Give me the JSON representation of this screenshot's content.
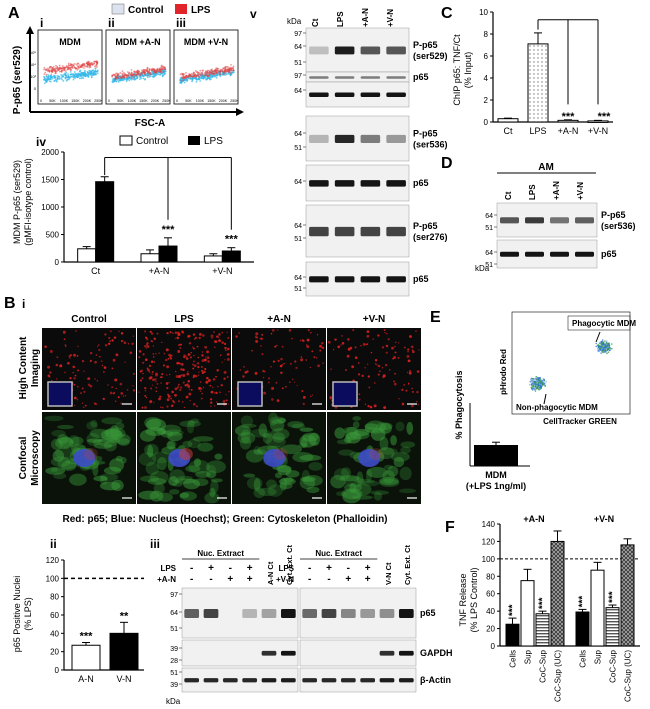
{
  "panelA": {
    "letter": "A",
    "legend": {
      "control": "Control",
      "lps": "LPS",
      "control_color": "#dde3ee",
      "lps_color": "#e0242a"
    },
    "flow": {
      "y_label": "P-p65 (ser529)",
      "x_label": "FSC-A",
      "subpanels": [
        {
          "num": "i",
          "label": "MDM"
        },
        {
          "num": "ii",
          "label": "MDM +A-N"
        },
        {
          "num": "iii",
          "label": "MDM +V-N"
        }
      ],
      "y_ticks": [
        "10⁵",
        "10⁴",
        "10³",
        "0"
      ],
      "x_ticks": [
        "0",
        "50K",
        "100K",
        "150K",
        "200K",
        "250K"
      ],
      "cyan": "#33b8e8",
      "red": "#e04646"
    },
    "iv": {
      "num": "iv",
      "y_label_1": "MDM P-p65 (ser529)",
      "y_label_2": "(gMFI-isotype control)",
      "y_ticks": [
        "0",
        "500",
        "1000",
        "1500",
        "2000"
      ],
      "legend_control": "Control",
      "legend_lps": "LPS",
      "groups": [
        "Ct",
        "+A-N",
        "+V-N"
      ],
      "sig": [
        "***",
        "***"
      ]
    },
    "v": {
      "num": "v",
      "kda": "kDa",
      "lanes": [
        "Ct",
        "LPS",
        "+A-N",
        "+V-N"
      ],
      "blots": [
        {
          "label1": "P-p65",
          "label2": "(ser529)",
          "markers": [
            "97",
            "64",
            "51"
          ]
        },
        {
          "label1": "p65",
          "label2": "",
          "markers": [
            "97",
            "64"
          ]
        },
        {
          "label1": "P-p65",
          "label2": "(ser536)",
          "markers": [
            "64",
            "51"
          ]
        },
        {
          "label1": "p65",
          "label2": "",
          "markers": [
            "64"
          ]
        },
        {
          "label1": "P-p65",
          "label2": "(ser276)",
          "markers": [
            "64",
            "51"
          ]
        },
        {
          "label1": "p65",
          "label2": "",
          "markers": [
            "64",
            "51"
          ]
        }
      ]
    }
  },
  "panelC": {
    "letter": "C",
    "y_label_1": "ChIP p65: TNF/Ct",
    "y_label_2": "(% Input)",
    "y_ticks": [
      "0",
      "2",
      "4",
      "6",
      "8",
      "10"
    ],
    "categories": [
      "Ct",
      "LPS",
      "+A-N",
      "+V-N"
    ],
    "sig": [
      "***",
      "***"
    ]
  },
  "panelD": {
    "letter": "D",
    "header": "AM",
    "lanes": [
      "Ct",
      "LPS",
      "+A-N",
      "+V-N"
    ],
    "kda": "kDa",
    "blots": [
      {
        "label1": "P-p65",
        "label2": "(ser536)",
        "markers": [
          "64",
          "51"
        ]
      },
      {
        "label1": "p65",
        "label2": "",
        "markers": [
          "64",
          "51"
        ]
      }
    ]
  },
  "panelB": {
    "letter": "B",
    "num_i": "i",
    "columns": [
      "Control",
      "LPS",
      "+A-N",
      "+V-N"
    ],
    "row1": "High Content",
    "row1b": "Imaging",
    "row2": "Confocal",
    "row2b": "Microscopy",
    "caption": "Red: p65; Blue: Nucleus (Hoechst); Green: Cytoskeleton (Phalloidin)",
    "ii": {
      "num": "ii",
      "y_label_1": "p65 Positive Nuclei",
      "y_label_2": "(% LPS)",
      "y_ticks": [
        "0",
        "20",
        "40",
        "60",
        "80",
        "100",
        "120"
      ],
      "categories": [
        "A-N",
        "V-N"
      ],
      "sig": [
        "***",
        "**"
      ]
    },
    "iii": {
      "num": "iii",
      "left": {
        "lps": "LPS",
        "drug": "+A-N",
        "header": "Nuc. Extract",
        "ct_label": "A-N Ct",
        "cyt_label": "Cyt. Ext. Ct",
        "lps_signs": [
          "-",
          "+",
          "-",
          "+"
        ],
        "drug_signs": [
          "-",
          "-",
          "+",
          "+"
        ],
        "markers": [
          [
            "97",
            "64",
            "51"
          ],
          [
            "39",
            "28"
          ],
          [
            "51",
            "39"
          ]
        ]
      },
      "right": {
        "lps": "LPS",
        "drug": "+V-N",
        "header": "Nuc. Extract",
        "ct_label": "V-N Ct",
        "cyt_label": "Cyt. Ext. Ct",
        "lps_signs": [
          "-",
          "+",
          "-",
          "+"
        ],
        "drug_signs": [
          "-",
          "-",
          "+",
          "+"
        ]
      },
      "labels": [
        "p65",
        "GAPDH",
        "β-Actin"
      ],
      "kda": "kDa"
    }
  },
  "panelE": {
    "letter": "E",
    "flow_y": "pHrodo Red",
    "flow_x": "CellTracker GREEN",
    "phago": "Phagocytic MDM",
    "nonphago": "Non-phagocytic MDM",
    "y_label": "% Phagocytosis",
    "category_1": "MDM",
    "category_2": "(+LPS 1ng/ml)"
  },
  "panelF": {
    "letter": "F",
    "y_label_1": "TNF Release",
    "y_label_2": "(% LPS Control)",
    "y_ticks": [
      "0",
      "20",
      "40",
      "60",
      "80",
      "100",
      "120",
      "140"
    ],
    "group_labels": [
      "+A-N",
      "+V-N"
    ],
    "categories": [
      "Cells",
      "Sup",
      "CoC-Sup",
      "CoC-Sup (UC)"
    ],
    "sig": "***"
  },
  "chart_data": [
    {
      "type": "bar",
      "id": "A-iv",
      "title": "",
      "xlabel": "",
      "ylabel": "MDM P-p65 (ser529) (gMFI-isotype control)",
      "categories": [
        "Ct",
        "+A-N",
        "+V-N"
      ],
      "series": [
        {
          "name": "Control",
          "values": [
            240,
            150,
            110
          ],
          "errors": [
            40,
            70,
            40
          ]
        },
        {
          "name": "LPS",
          "values": [
            1460,
            290,
            200
          ],
          "errors": [
            90,
            150,
            60
          ]
        }
      ],
      "ylim": [
        0,
        2000
      ]
    },
    {
      "type": "bar",
      "id": "C",
      "title": "",
      "ylabel": "ChIP p65: TNF/Ct (% Input)",
      "categories": [
        "Ct",
        "LPS",
        "+A-N",
        "+V-N"
      ],
      "values": [
        0.3,
        7.1,
        0.15,
        0.1
      ],
      "errors": [
        0.05,
        1.0,
        0.05,
        0.05
      ],
      "ylim": [
        0,
        10
      ]
    },
    {
      "type": "bar",
      "id": "B-ii",
      "title": "",
      "ylabel": "p65 Positive Nuclei (% LPS)",
      "categories": [
        "A-N",
        "V-N"
      ],
      "values": [
        27,
        40
      ],
      "errors": [
        3,
        12
      ],
      "reference_line": 100,
      "ylim": [
        0,
        120
      ]
    },
    {
      "type": "bar",
      "id": "E",
      "title": "",
      "ylabel": "% Phagocytosis",
      "categories": [
        "MDM (+LPS 1ng/ml)"
      ],
      "values": [
        15
      ],
      "errors": [
        2
      ]
    },
    {
      "type": "bar",
      "id": "F",
      "title": "",
      "ylabel": "TNF Release (% LPS Control)",
      "groups": [
        "+A-N",
        "+V-N"
      ],
      "categories": [
        "Cells",
        "Sup",
        "CoC-Sup",
        "CoC-Sup (UC)"
      ],
      "series": [
        {
          "name": "+A-N",
          "values": [
            25,
            75,
            37,
            120
          ],
          "errors": [
            7,
            13,
            3,
            12
          ]
        },
        {
          "name": "+V-N",
          "values": [
            39,
            87,
            44,
            116
          ],
          "errors": [
            3,
            9,
            3,
            7
          ]
        }
      ],
      "reference_line": 100,
      "ylim": [
        0,
        140
      ]
    }
  ]
}
